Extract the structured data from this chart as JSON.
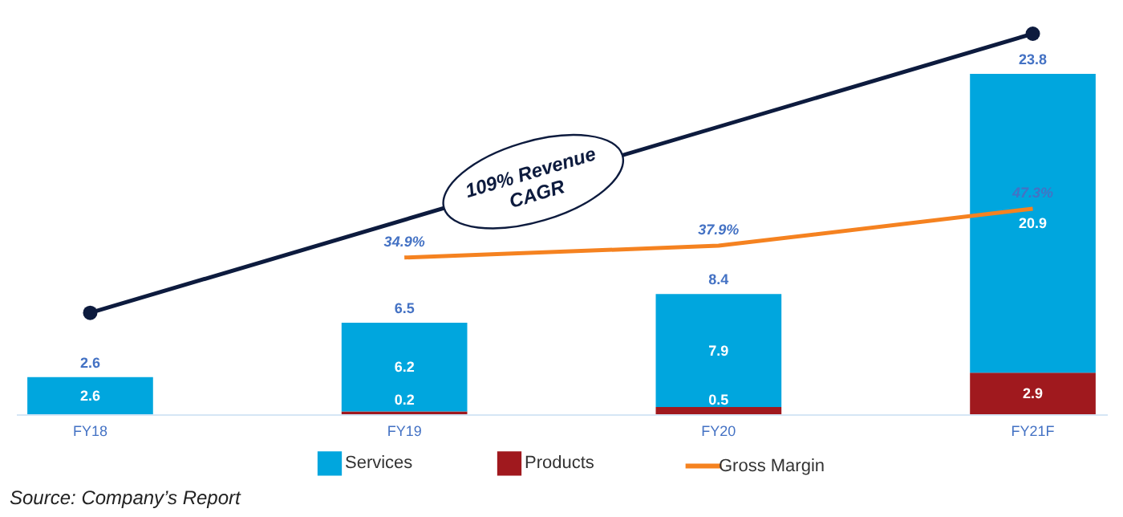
{
  "chart_data": {
    "type": "bar",
    "stacked": true,
    "categories": [
      "FY18",
      "FY19",
      "FY20",
      "FY21F"
    ],
    "series": [
      {
        "name": "Products",
        "color": "#a0191e",
        "values": [
          null,
          0.2,
          0.5,
          2.9
        ]
      },
      {
        "name": "Services",
        "color": "#00a6de",
        "values": [
          2.6,
          6.2,
          7.9,
          20.9
        ]
      },
      {
        "name": "Gross Margin",
        "type": "line",
        "axis": "y2",
        "color": "#f58220",
        "values": [
          null,
          34.9,
          37.9,
          47.3
        ],
        "value_labels": [
          null,
          "34.9%",
          "37.9%",
          "47.3%"
        ]
      }
    ],
    "data_labels": true,
    "totals": [
      "2.6",
      "6.5",
      "8.4",
      "23.8"
    ],
    "tick_labels": "x",
    "legend": "bottom",
    "annotations": [
      "109% Revenue CAGR",
      "Source: Company’s Report"
    ]
  }
}
